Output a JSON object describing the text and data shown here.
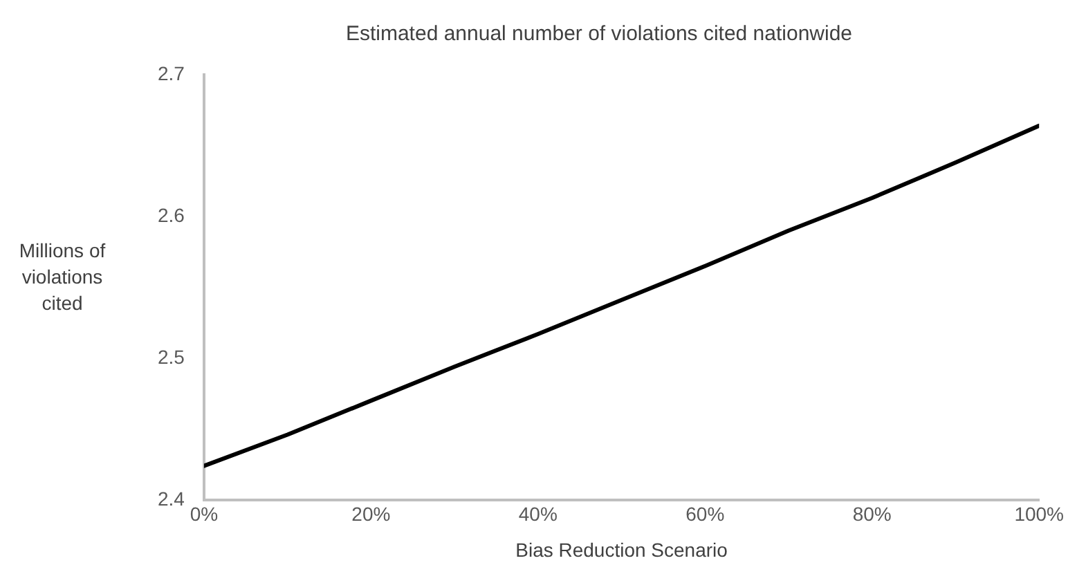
{
  "chart_data": {
    "type": "line",
    "title": "Estimated annual number of violations cited nationwide",
    "xlabel": "Bias Reduction Scenario",
    "ylabel": "Millions of violations cited",
    "x": [
      0,
      10,
      20,
      30,
      40,
      50,
      60,
      70,
      80,
      90,
      100
    ],
    "series": [
      {
        "color": "#000000",
        "values": [
          2.424,
          2.446,
          2.47,
          2.494,
          2.517,
          2.541,
          2.565,
          2.59,
          2.613,
          2.638,
          2.664
        ]
      }
    ],
    "xlim": [
      0,
      100
    ],
    "xticks": [
      {
        "value": 0,
        "label": "0%"
      },
      {
        "value": 20,
        "label": "20%"
      },
      {
        "value": 40,
        "label": "40%"
      },
      {
        "value": 60,
        "label": "60%"
      },
      {
        "value": 80,
        "label": "80%"
      },
      {
        "value": 100,
        "label": "100%"
      }
    ],
    "ylim": [
      2.4,
      2.7
    ],
    "yticks": [
      2.4,
      2.5,
      2.6,
      2.7
    ],
    "grid": false,
    "legend": false,
    "marker": "none",
    "line_style": "solid"
  }
}
